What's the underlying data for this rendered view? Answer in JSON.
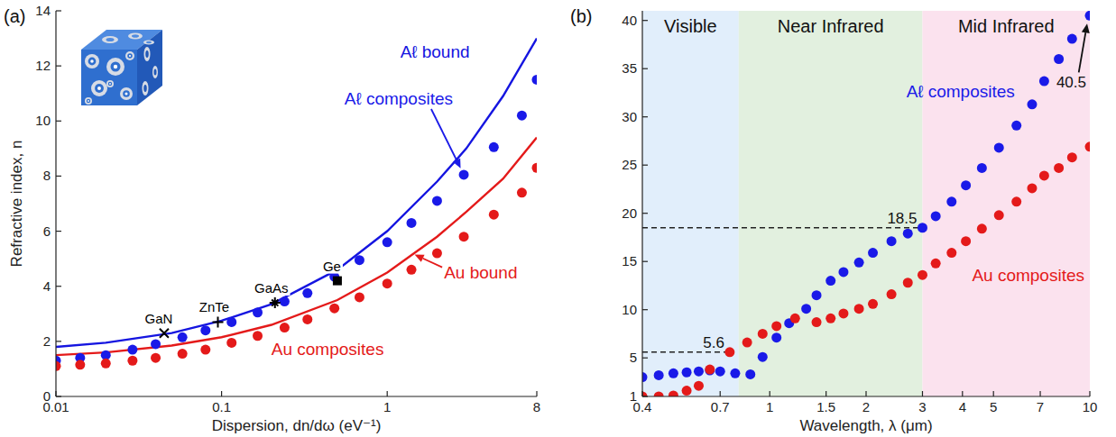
{
  "chart_data": [
    {
      "type": "scatter",
      "title": "(a)",
      "x_label": "Dispersion, dn/dω (eV⁻¹)",
      "y_label": "Refractive index, n",
      "log": "x",
      "xlim": [
        0.01,
        8
      ],
      "xticks": [
        0.01,
        0.1,
        1,
        8
      ],
      "ylim": [
        0,
        14
      ],
      "yticks": [
        0,
        2,
        4,
        6,
        8,
        10,
        12,
        14
      ],
      "series": [
        {
          "name": "Aℓ bound",
          "type": "line",
          "line_style": "solid",
          "color": "#1515e0",
          "x": [
            0.01,
            0.02,
            0.05,
            0.1,
            0.2,
            0.5,
            1,
            2,
            3,
            5,
            8
          ],
          "values": [
            1.8,
            1.95,
            2.3,
            2.75,
            3.35,
            4.6,
            6.0,
            7.8,
            9.0,
            10.9,
            13.0
          ]
        },
        {
          "name": "Au bound",
          "type": "line",
          "line_style": "solid",
          "color": "#e41a1a",
          "x": [
            0.01,
            0.02,
            0.05,
            0.1,
            0.2,
            0.5,
            1,
            2,
            3,
            5,
            8
          ],
          "values": [
            1.5,
            1.6,
            1.85,
            2.15,
            2.6,
            3.5,
            4.5,
            5.8,
            6.7,
            7.9,
            9.4
          ]
        },
        {
          "name": "Aℓ composites",
          "type": "scatter",
          "marker": "circle",
          "color": "#1a1ae8",
          "x": [
            0.01,
            0.014,
            0.02,
            0.029,
            0.04,
            0.058,
            0.08,
            0.115,
            0.165,
            0.24,
            0.33,
            0.48,
            0.68,
            1,
            1.4,
            2,
            2.9,
            4.4,
            6.5,
            8
          ],
          "values": [
            1.3,
            1.4,
            1.5,
            1.7,
            1.9,
            2.15,
            2.4,
            2.7,
            3.05,
            3.45,
            3.75,
            4.35,
            4.95,
            5.6,
            6.3,
            7.1,
            8.05,
            9.05,
            10.2,
            11.5
          ]
        },
        {
          "name": "Au composites",
          "type": "scatter",
          "marker": "circle",
          "color": "#e41a1a",
          "x": [
            0.01,
            0.014,
            0.02,
            0.029,
            0.04,
            0.058,
            0.08,
            0.115,
            0.165,
            0.24,
            0.33,
            0.48,
            0.68,
            1,
            1.4,
            2,
            2.9,
            4.4,
            6.5,
            8
          ],
          "values": [
            1.1,
            1.15,
            1.2,
            1.3,
            1.4,
            1.55,
            1.7,
            1.95,
            2.2,
            2.5,
            2.8,
            3.2,
            3.6,
            4.1,
            4.6,
            5.2,
            5.8,
            6.6,
            7.4,
            8.3
          ]
        },
        {
          "name": "GaN",
          "type": "scatter",
          "marker": "x",
          "color": "#000000",
          "x": [
            0.045
          ],
          "values": [
            2.3
          ]
        },
        {
          "name": "ZnTe",
          "type": "scatter",
          "marker": "plus",
          "color": "#000000",
          "x": [
            0.095
          ],
          "values": [
            2.7
          ]
        },
        {
          "name": "GaAs",
          "type": "scatter",
          "marker": "asterisk",
          "color": "#000000",
          "x": [
            0.21
          ],
          "values": [
            3.4
          ]
        },
        {
          "name": "Ge",
          "type": "scatter",
          "marker": "square",
          "color": "#000000",
          "x": [
            0.5
          ],
          "values": [
            4.2
          ]
        }
      ]
    },
    {
      "type": "scatter",
      "title": "(b)",
      "x_label": "Wavelength, λ (μm)",
      "log": "x",
      "xlim": [
        0.4,
        10
      ],
      "xticks": [
        0.4,
        0.7,
        1,
        1.5,
        2,
        3,
        4,
        5,
        7,
        10
      ],
      "ylim": [
        1,
        41
      ],
      "yticks": [
        1,
        5,
        10,
        15,
        20,
        25,
        30,
        35,
        40
      ],
      "regions": [
        {
          "label": "Visible",
          "from": 0.4,
          "to": 0.8,
          "color": "#e1eefb"
        },
        {
          "label": "Near Infrared",
          "from": 0.8,
          "to": 3,
          "color": "#e2f0df"
        },
        {
          "label": "Mid Infrared",
          "from": 3,
          "to": 10,
          "color": "#fbe2ee"
        }
      ],
      "series": [
        {
          "name": "Aℓ composites",
          "type": "scatter",
          "marker": "circle",
          "color": "#1a1ae8",
          "x": [
            0.4,
            0.45,
            0.5,
            0.55,
            0.6,
            0.65,
            0.7,
            0.78,
            0.87,
            0.95,
            1.05,
            1.15,
            1.3,
            1.4,
            1.55,
            1.7,
            1.9,
            2.1,
            2.4,
            2.7,
            3,
            3.3,
            3.7,
            4.1,
            4.6,
            5.2,
            5.9,
            6.6,
            7.2,
            8,
            8.8,
            10
          ],
          "values": [
            3.0,
            3.2,
            3.4,
            3.5,
            3.6,
            3.7,
            3.6,
            3.4,
            3.3,
            5.1,
            7.1,
            8.6,
            10.1,
            11.5,
            13.0,
            13.9,
            14.9,
            15.9,
            17.1,
            17.9,
            18.5,
            19.7,
            21.2,
            22.9,
            24.7,
            26.8,
            29.1,
            31.3,
            33.7,
            36.0,
            38.1,
            40.5
          ]
        },
        {
          "name": "Au composites",
          "type": "scatter",
          "marker": "circle",
          "color": "#e41a1a",
          "x": [
            0.4,
            0.45,
            0.5,
            0.55,
            0.6,
            0.65,
            0.75,
            0.85,
            0.95,
            1.05,
            1.2,
            1.4,
            1.55,
            1.7,
            1.9,
            2.1,
            2.4,
            2.7,
            3,
            3.3,
            3.7,
            4.1,
            4.6,
            5.2,
            5.9,
            6.6,
            7.2,
            8,
            8.8,
            10
          ],
          "values": [
            1.0,
            1.0,
            1.1,
            1.6,
            2.1,
            3.8,
            5.6,
            6.6,
            7.5,
            8.3,
            9.1,
            8.7,
            9.1,
            9.6,
            10.1,
            10.6,
            11.6,
            12.8,
            13.6,
            14.8,
            15.9,
            17.1,
            18.4,
            19.8,
            21.2,
            22.6,
            23.9,
            24.7,
            25.8,
            26.9
          ]
        }
      ],
      "annotations": [
        {
          "text": "5.6",
          "x": 0.75,
          "y": 5.6,
          "line_style": "dashed"
        },
        {
          "text": "18.5",
          "x": 3,
          "y": 18.5,
          "line_style": "dashed"
        },
        {
          "text": "40.5",
          "x": 10,
          "y": 40.5,
          "line_style": "arrow"
        }
      ]
    }
  ]
}
